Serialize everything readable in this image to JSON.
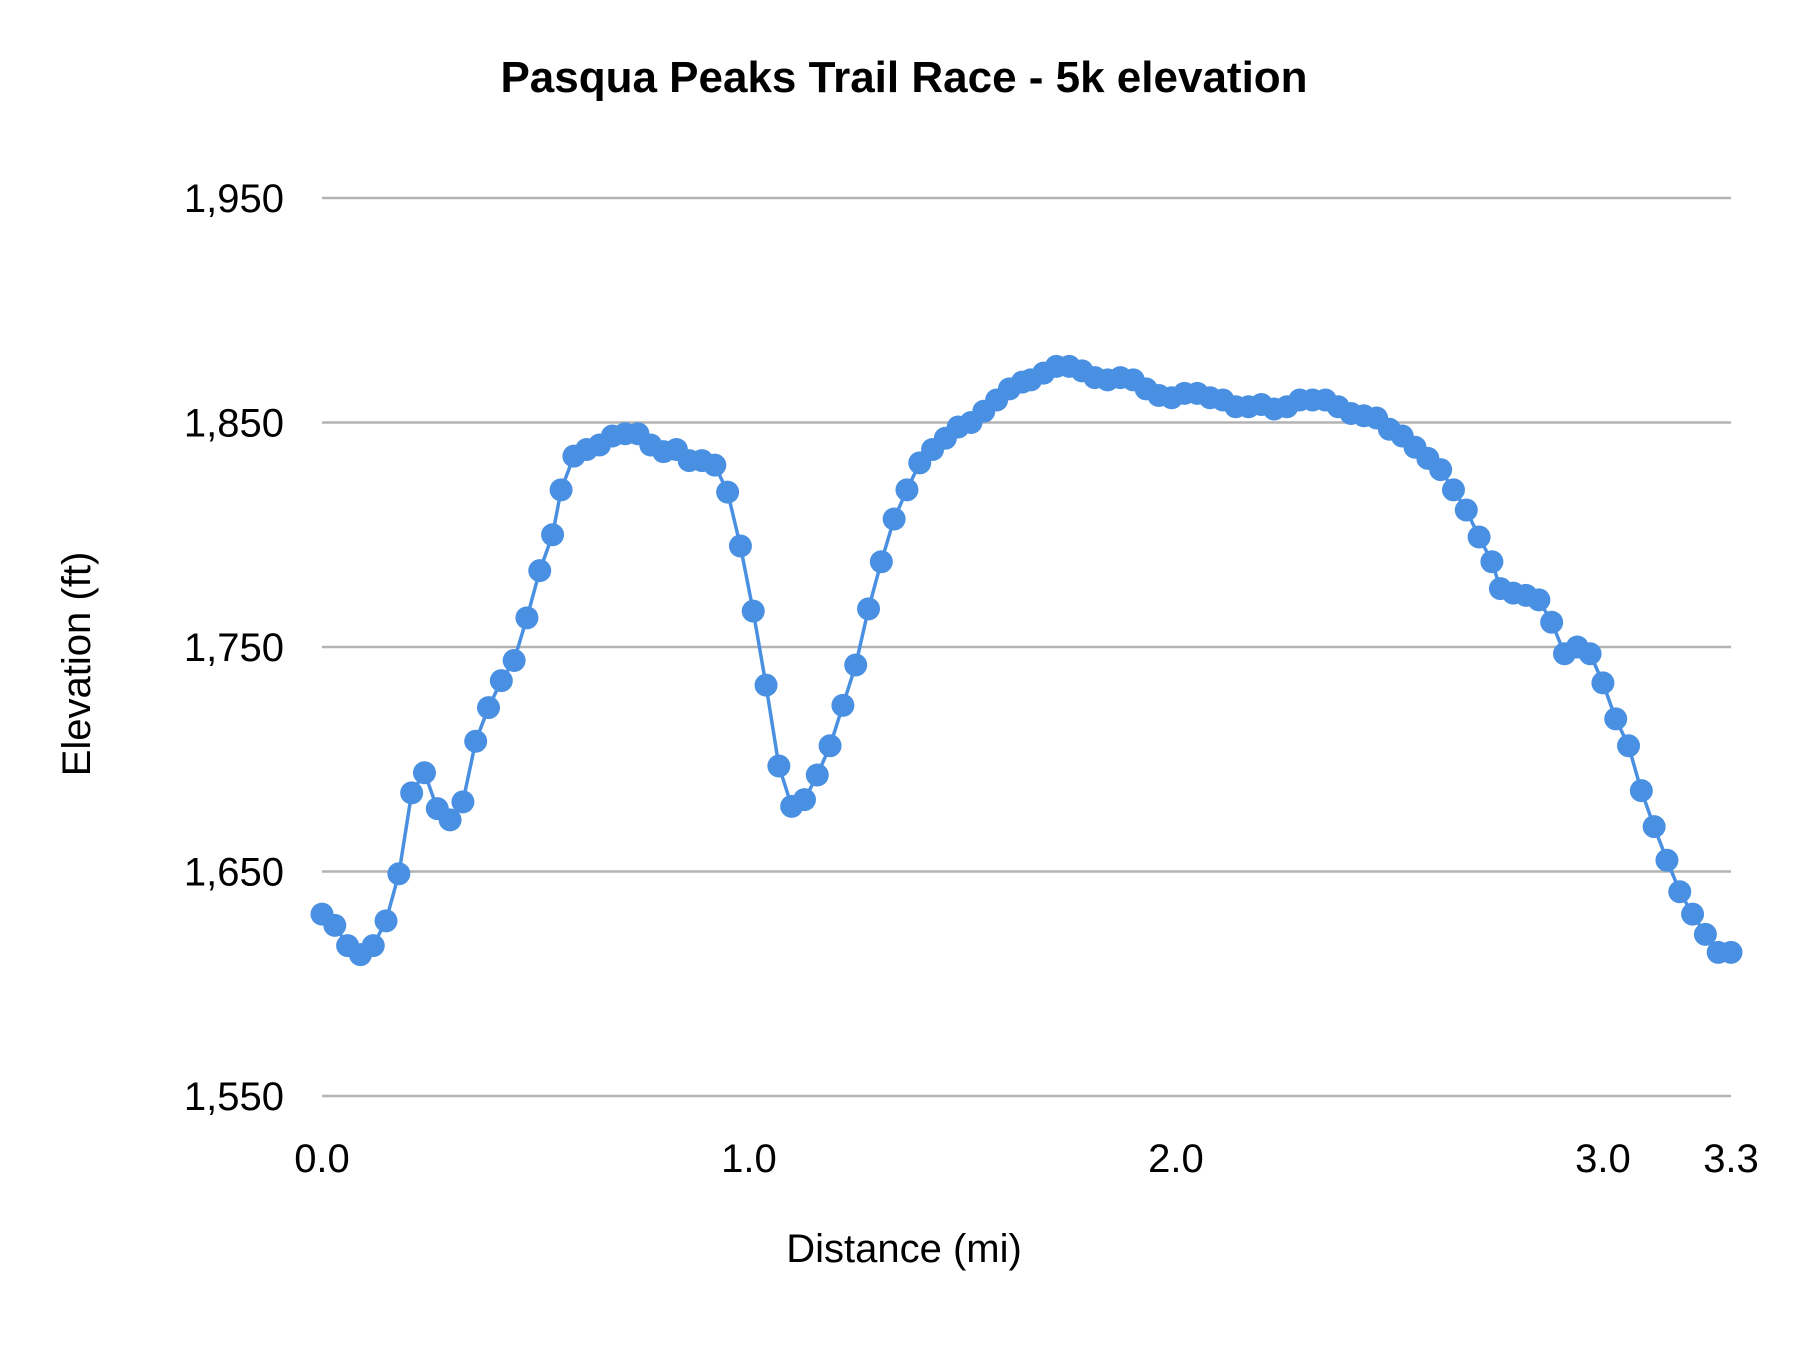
{
  "chart_data": {
    "type": "line",
    "title": "Pasqua Peaks Trail Race - 5k elevation",
    "xlabel": "Distance (mi)",
    "ylabel": "Elevation (ft)",
    "xlim": [
      0,
      3.3
    ],
    "ylim": [
      1550,
      1950
    ],
    "x_ticks": [
      0.0,
      1.0,
      2.0,
      3.0,
      3.3
    ],
    "x_tick_labels": [
      "0.0",
      "1.0",
      "2.0",
      "3.0",
      "3.3"
    ],
    "y_ticks": [
      1550,
      1650,
      1750,
      1850,
      1950
    ],
    "y_tick_labels": [
      "1,550",
      "1,650",
      "1,750",
      "1,850",
      "1,950"
    ],
    "grid": "horizontal",
    "legend": "none",
    "markers": true,
    "series_color": "#4a90e2",
    "grid_color": "#b3b3b3",
    "series": [
      {
        "x": [
          0,
          0.03,
          0.06,
          0.09,
          0.12,
          0.15,
          0.18,
          0.21,
          0.24,
          0.27,
          0.3,
          0.33,
          0.36,
          0.39,
          0.42,
          0.45,
          0.48,
          0.51,
          0.54,
          0.56,
          0.59,
          0.62,
          0.65,
          0.68,
          0.71,
          0.74,
          0.77,
          0.8,
          0.83,
          0.86,
          0.89,
          0.92,
          0.95,
          0.98,
          1.01,
          1.04,
          1.07,
          1.1,
          1.13,
          1.16,
          1.19,
          1.22,
          1.25,
          1.28,
          1.31,
          1.34,
          1.37,
          1.4,
          1.43,
          1.46,
          1.49,
          1.52,
          1.55,
          1.58,
          1.61,
          1.64,
          1.66,
          1.69,
          1.72,
          1.75,
          1.78,
          1.81,
          1.84,
          1.87,
          1.9,
          1.93,
          1.96,
          1.99,
          2.02,
          2.05,
          2.08,
          2.11,
          2.14,
          2.17,
          2.2,
          2.23,
          2.26,
          2.29,
          2.32,
          2.35,
          2.38,
          2.41,
          2.44,
          2.47,
          2.5,
          2.53,
          2.56,
          2.59,
          2.62,
          2.65,
          2.68,
          2.71,
          2.74,
          2.76,
          2.79,
          2.82,
          2.85,
          2.88,
          2.91,
          2.94,
          2.97,
          3.0,
          3.03,
          3.06,
          3.09,
          3.12,
          3.15,
          3.18,
          3.21,
          3.24,
          3.27,
          3.3
        ],
        "y": [
          1631,
          1626,
          1617,
          1613,
          1617,
          1628,
          1649,
          1685,
          1694,
          1678,
          1673,
          1681,
          1708,
          1723,
          1735,
          1744,
          1763,
          1784,
          1800,
          1820,
          1835,
          1838,
          1840,
          1844,
          1845,
          1845,
          1840,
          1837,
          1838,
          1833,
          1833,
          1831,
          1819,
          1795,
          1766,
          1733,
          1697,
          1679,
          1682,
          1693,
          1706,
          1724,
          1742,
          1767,
          1788,
          1807,
          1820,
          1832,
          1838,
          1843,
          1848,
          1850,
          1855,
          1860,
          1865,
          1868,
          1869,
          1872,
          1875,
          1875,
          1873,
          1870,
          1869,
          1870,
          1869,
          1865,
          1862,
          1861,
          1863,
          1863,
          1861,
          1860,
          1857,
          1857,
          1858,
          1856,
          1857,
          1860,
          1860,
          1860,
          1857,
          1854,
          1853,
          1852,
          1847,
          1844,
          1839,
          1834,
          1829,
          1820,
          1811,
          1799,
          1788,
          1776,
          1774,
          1773,
          1771,
          1761,
          1747,
          1750,
          1747,
          1734,
          1718,
          1706,
          1686,
          1670,
          1655,
          1641,
          1631,
          1622,
          1614,
          1614
        ]
      }
    ]
  }
}
